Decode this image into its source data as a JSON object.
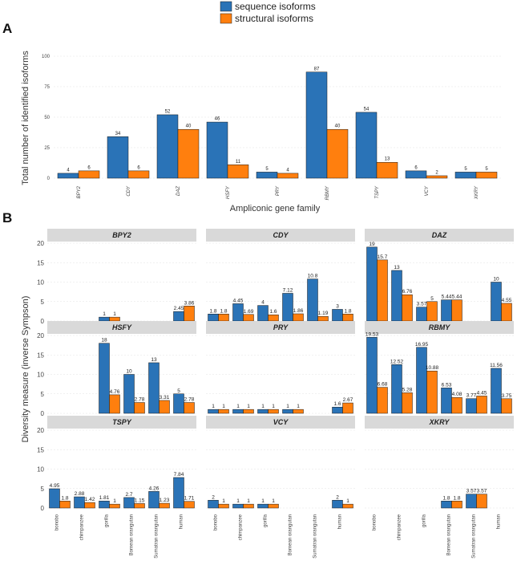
{
  "colors": {
    "sequence": "#2a73b7",
    "structural": "#ff7f0e",
    "strip": "#d9d9d9",
    "bar_edge": "#1a1a1a"
  },
  "legend": {
    "items": [
      "sequence isoforms",
      "structural isoforms"
    ]
  },
  "panels": {
    "a": "A",
    "b": "B"
  },
  "chart_data": [
    {
      "type": "bar",
      "panel": "A",
      "title": "",
      "xlabel": "Ampliconic gene family",
      "ylabel": "Total number of identified isoforms",
      "ylim": [
        0,
        100
      ],
      "yticks": [
        0,
        25,
        50,
        75,
        100
      ],
      "categories": [
        "BPY2",
        "CDY",
        "DAZ",
        "HSFY",
        "PRY",
        "RBMY",
        "TSPY",
        "VCY",
        "XKRY"
      ],
      "series": [
        {
          "name": "sequence isoforms",
          "values": [
            4,
            34,
            52,
            46,
            5,
            87,
            54,
            6,
            5
          ]
        },
        {
          "name": "structural isoforms",
          "values": [
            6,
            6,
            40,
            11,
            4,
            40,
            13,
            2,
            5
          ]
        }
      ]
    },
    {
      "type": "bar",
      "panel": "B",
      "title": "",
      "xlabel": "",
      "ylabel": "Diversity measure (inverse Sympson)",
      "ylim": [
        0,
        20
      ],
      "yticks": [
        0,
        5,
        10,
        15,
        20
      ],
      "species": [
        "bonobo",
        "chimpanzee",
        "gorilla",
        "Bornean orangutan",
        "Sumatran orangutan",
        "human"
      ],
      "facets": [
        {
          "family": "BPY2",
          "sequence": [
            null,
            null,
            1,
            null,
            null,
            2.45
          ],
          "structural": [
            null,
            null,
            1,
            null,
            null,
            3.86
          ],
          "seq_labels": [
            "",
            "",
            "1",
            "",
            "",
            "2.45"
          ],
          "str_labels": [
            "",
            "",
            "1",
            "",
            "",
            "3.86"
          ]
        },
        {
          "family": "CDY",
          "sequence": [
            1.8,
            4.45,
            4,
            7.12,
            10.8,
            3
          ],
          "structural": [
            1.8,
            1.69,
            1.6,
            1.86,
            1.19,
            1.8
          ],
          "seq_labels": [
            "1.8",
            "4.45",
            "4",
            "7.12",
            "10.8",
            "3"
          ],
          "str_labels": [
            "1.8",
            "1.69",
            "1.6",
            "1.86",
            "1.19",
            "1.8"
          ]
        },
        {
          "family": "DAZ",
          "sequence": [
            19,
            13,
            3.57,
            5.44,
            null,
            10
          ],
          "structural": [
            15.7,
            6.76,
            5,
            5.44,
            null,
            4.55
          ],
          "seq_labels": [
            "19",
            "13",
            "3.57",
            "5.44",
            "",
            "10"
          ],
          "str_labels": [
            "15.7",
            "6.76",
            "5",
            "5.44",
            "",
            "4.55"
          ]
        },
        {
          "family": "HSFY",
          "sequence": [
            null,
            null,
            18,
            10,
            13,
            5
          ],
          "structural": [
            null,
            null,
            4.76,
            2.78,
            3.31,
            2.78
          ],
          "seq_labels": [
            "",
            "",
            "18",
            "10",
            "13",
            "5"
          ],
          "str_labels": [
            "",
            "",
            "4.76",
            "2.78",
            "3.31",
            "2.78"
          ]
        },
        {
          "family": "PRY",
          "sequence": [
            1,
            1,
            1,
            1,
            null,
            1.6
          ],
          "structural": [
            1,
            1,
            1,
            1,
            null,
            2.67
          ],
          "seq_labels": [
            "1",
            "1",
            "1",
            "1",
            "",
            "1.6"
          ],
          "str_labels": [
            "1",
            "1",
            "1",
            "1",
            "",
            "2.67"
          ]
        },
        {
          "family": "RBMY",
          "sequence": [
            19.53,
            12.52,
            16.95,
            6.53,
            3.77,
            11.56
          ],
          "structural": [
            6.68,
            5.28,
            10.88,
            4.08,
            4.45,
            3.75
          ],
          "seq_labels": [
            "19.53",
            "12.52",
            "16.95",
            "6.53",
            "3.77",
            "11.56"
          ],
          "str_labels": [
            "6.68",
            "5.28",
            "10.88",
            "4.08",
            "4.45",
            "3.75"
          ]
        },
        {
          "family": "TSPY",
          "sequence": [
            4.95,
            2.88,
            1.81,
            2.7,
            4.26,
            7.84
          ],
          "structural": [
            1.8,
            1.42,
            1,
            1.15,
            1.23,
            1.71
          ],
          "seq_labels": [
            "4.95",
            "2.88",
            "1.81",
            "2.7",
            "4.26",
            "7.84"
          ],
          "str_labels": [
            "1.8",
            "1.42",
            "1",
            "1.15",
            "1.23",
            "1.71"
          ]
        },
        {
          "family": "VCY",
          "sequence": [
            2,
            1,
            1,
            null,
            null,
            2
          ],
          "structural": [
            1,
            1,
            1,
            null,
            null,
            1
          ],
          "seq_labels": [
            "2",
            "1",
            "1",
            "",
            "",
            "2"
          ],
          "str_labels": [
            "1",
            "1",
            "1",
            "",
            "",
            "1"
          ]
        },
        {
          "family": "XKRY",
          "sequence": [
            null,
            null,
            null,
            1.8,
            3.57,
            null
          ],
          "structural": [
            null,
            null,
            null,
            1.8,
            3.57,
            null
          ],
          "seq_labels": [
            "",
            "",
            "",
            "1.8",
            "3.57",
            ""
          ],
          "str_labels": [
            "",
            "",
            "",
            "1.8",
            "3.57",
            ""
          ]
        }
      ]
    }
  ]
}
